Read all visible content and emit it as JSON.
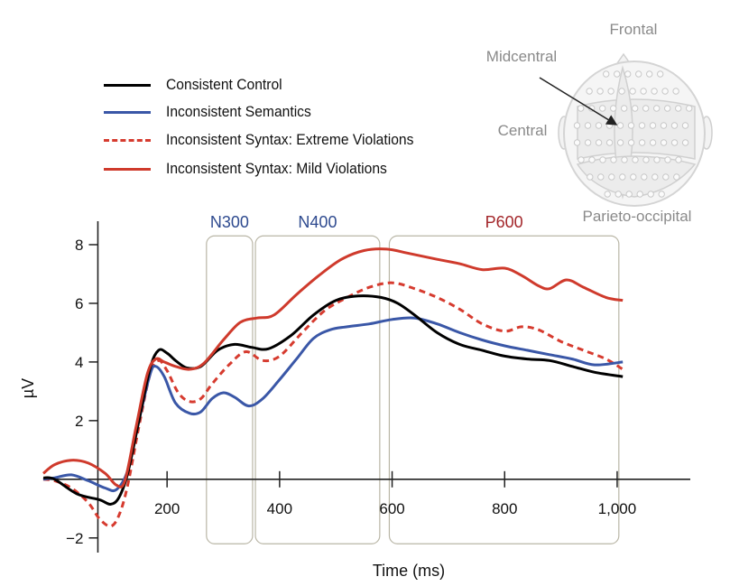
{
  "chart_data": {
    "type": "line",
    "xlabel": "Time (ms)",
    "ylabel": "µV",
    "xlim": [
      -20,
      1130
    ],
    "ylim": [
      -2.5,
      8.8
    ],
    "x_ticks": [
      {
        "value": 200,
        "label": "200"
      },
      {
        "value": 400,
        "label": "400"
      },
      {
        "value": 600,
        "label": "600"
      },
      {
        "value": 800,
        "label": "800"
      },
      {
        "value": 1000,
        "label": "1,000"
      }
    ],
    "y_ticks": [
      {
        "value": -2,
        "label": "−2"
      },
      {
        "value": 2,
        "label": "2"
      },
      {
        "value": 4,
        "label": "4"
      },
      {
        "value": 6,
        "label": "6"
      },
      {
        "value": 8,
        "label": "8"
      }
    ],
    "windows": [
      {
        "label": "N300",
        "start": 270,
        "end": 352,
        "color": "#2e4a8f"
      },
      {
        "label": "N400",
        "start": 357,
        "end": 578,
        "color": "#2e4a8f"
      },
      {
        "label": "P600",
        "start": 595,
        "end": 1003,
        "color": "#a3262a"
      }
    ],
    "legend_position": "top-left",
    "series": [
      {
        "name": "Consistent Control",
        "color": "#000000",
        "dash": false,
        "points": [
          [
            -20,
            0.05
          ],
          [
            0,
            0.0
          ],
          [
            40,
            -0.5
          ],
          [
            80,
            -0.7
          ],
          [
            100,
            -0.85
          ],
          [
            115,
            -0.6
          ],
          [
            130,
            0.2
          ],
          [
            150,
            2.0
          ],
          [
            170,
            3.8
          ],
          [
            185,
            4.4
          ],
          [
            200,
            4.3
          ],
          [
            215,
            4.05
          ],
          [
            235,
            3.8
          ],
          [
            260,
            3.85
          ],
          [
            290,
            4.4
          ],
          [
            320,
            4.6
          ],
          [
            350,
            4.5
          ],
          [
            380,
            4.45
          ],
          [
            420,
            4.9
          ],
          [
            460,
            5.6
          ],
          [
            500,
            6.1
          ],
          [
            540,
            6.25
          ],
          [
            580,
            6.2
          ],
          [
            610,
            6.0
          ],
          [
            640,
            5.6
          ],
          [
            680,
            5.0
          ],
          [
            720,
            4.6
          ],
          [
            760,
            4.4
          ],
          [
            800,
            4.2
          ],
          [
            840,
            4.1
          ],
          [
            880,
            4.05
          ],
          [
            920,
            3.85
          ],
          [
            960,
            3.65
          ],
          [
            1010,
            3.5
          ]
        ]
      },
      {
        "name": "Inconsistent Semantics",
        "color": "#3a57a7",
        "dash": false,
        "points": [
          [
            -20,
            0.0
          ],
          [
            0,
            0.05
          ],
          [
            30,
            0.15
          ],
          [
            60,
            -0.05
          ],
          [
            90,
            -0.3
          ],
          [
            110,
            -0.35
          ],
          [
            130,
            0.3
          ],
          [
            150,
            2.0
          ],
          [
            170,
            3.6
          ],
          [
            180,
            3.85
          ],
          [
            195,
            3.5
          ],
          [
            215,
            2.6
          ],
          [
            240,
            2.25
          ],
          [
            260,
            2.3
          ],
          [
            280,
            2.75
          ],
          [
            300,
            2.95
          ],
          [
            320,
            2.8
          ],
          [
            345,
            2.5
          ],
          [
            370,
            2.75
          ],
          [
            400,
            3.4
          ],
          [
            430,
            4.1
          ],
          [
            460,
            4.8
          ],
          [
            490,
            5.1
          ],
          [
            520,
            5.2
          ],
          [
            560,
            5.3
          ],
          [
            600,
            5.45
          ],
          [
            640,
            5.5
          ],
          [
            680,
            5.3
          ],
          [
            720,
            5.0
          ],
          [
            760,
            4.75
          ],
          [
            800,
            4.55
          ],
          [
            840,
            4.4
          ],
          [
            880,
            4.25
          ],
          [
            920,
            4.1
          ],
          [
            960,
            3.9
          ],
          [
            1010,
            4.0
          ]
        ]
      },
      {
        "name": "Inconsistent Syntax: Extreme Violations",
        "color": "#d63b2f",
        "dash": true,
        "points": [
          [
            -20,
            0.0
          ],
          [
            0,
            -0.05
          ],
          [
            30,
            -0.3
          ],
          [
            60,
            -0.8
          ],
          [
            80,
            -1.35
          ],
          [
            100,
            -1.6
          ],
          [
            115,
            -1.2
          ],
          [
            130,
            -0.2
          ],
          [
            150,
            1.8
          ],
          [
            170,
            3.6
          ],
          [
            185,
            4.05
          ],
          [
            200,
            3.7
          ],
          [
            220,
            2.95
          ],
          [
            240,
            2.65
          ],
          [
            260,
            2.75
          ],
          [
            280,
            3.25
          ],
          [
            310,
            3.9
          ],
          [
            340,
            4.35
          ],
          [
            370,
            4.05
          ],
          [
            400,
            4.2
          ],
          [
            440,
            5.0
          ],
          [
            480,
            5.75
          ],
          [
            520,
            6.2
          ],
          [
            560,
            6.55
          ],
          [
            600,
            6.7
          ],
          [
            640,
            6.5
          ],
          [
            680,
            6.2
          ],
          [
            720,
            5.8
          ],
          [
            760,
            5.3
          ],
          [
            800,
            5.05
          ],
          [
            830,
            5.2
          ],
          [
            860,
            5.1
          ],
          [
            900,
            4.7
          ],
          [
            940,
            4.4
          ],
          [
            980,
            4.1
          ],
          [
            1010,
            3.75
          ]
        ]
      },
      {
        "name": "Inconsistent Syntax: Mild Violations",
        "color": "#cf3a2c",
        "dash": false,
        "points": [
          [
            -20,
            0.2
          ],
          [
            0,
            0.5
          ],
          [
            30,
            0.65
          ],
          [
            60,
            0.55
          ],
          [
            90,
            0.2
          ],
          [
            110,
            -0.2
          ],
          [
            125,
            -0.05
          ],
          [
            145,
            1.8
          ],
          [
            165,
            3.6
          ],
          [
            180,
            4.1
          ],
          [
            195,
            4.0
          ],
          [
            215,
            3.85
          ],
          [
            240,
            3.75
          ],
          [
            265,
            3.95
          ],
          [
            300,
            4.75
          ],
          [
            330,
            5.35
          ],
          [
            360,
            5.5
          ],
          [
            390,
            5.6
          ],
          [
            430,
            6.3
          ],
          [
            470,
            6.95
          ],
          [
            510,
            7.5
          ],
          [
            550,
            7.8
          ],
          [
            590,
            7.85
          ],
          [
            630,
            7.7
          ],
          [
            680,
            7.5
          ],
          [
            720,
            7.35
          ],
          [
            760,
            7.15
          ],
          [
            800,
            7.2
          ],
          [
            830,
            6.95
          ],
          [
            860,
            6.6
          ],
          [
            880,
            6.5
          ],
          [
            910,
            6.8
          ],
          [
            940,
            6.55
          ],
          [
            980,
            6.2
          ],
          [
            1010,
            6.1
          ]
        ]
      }
    ]
  },
  "inset": {
    "labels": {
      "frontal": "Frontal",
      "midcentral": "Midcentral",
      "central": "Central",
      "parieto_occipital": "Parieto-occipital"
    }
  }
}
